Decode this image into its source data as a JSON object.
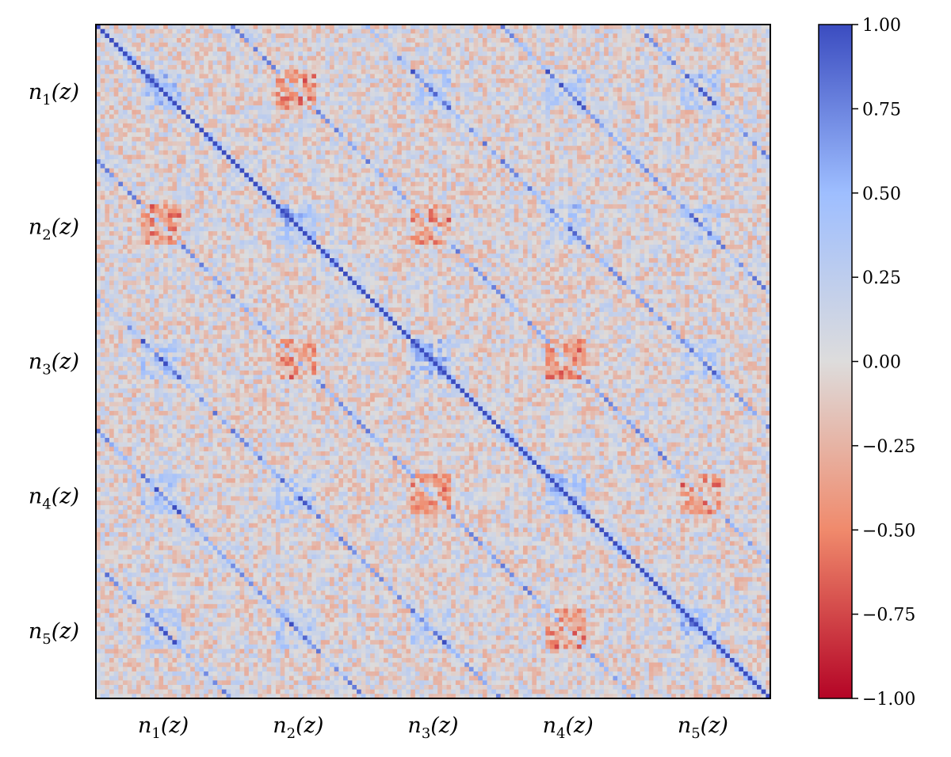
{
  "chart_data": {
    "type": "heatmap",
    "title": "",
    "description_matrix": "correlation matrix of five stacked redshift distributions n1(z)..n5(z), each block of 30 bins (150 x 150 total), diverging colormap",
    "blocks": [
      {
        "base": "n",
        "sub": "1",
        "suffix": "(z)"
      },
      {
        "base": "n",
        "sub": "2",
        "suffix": "(z)"
      },
      {
        "base": "n",
        "sub": "3",
        "suffix": "(z)"
      },
      {
        "base": "n",
        "sub": "4",
        "suffix": "(z)"
      },
      {
        "base": "n",
        "sub": "5",
        "suffix": "(z)"
      }
    ],
    "bins_per_block": 30,
    "matrix_size": 150,
    "colorbar": {
      "min": -1.0,
      "max": 1.0,
      "ticks": [
        "1.00",
        "0.75",
        "0.50",
        "0.25",
        "0.00",
        "−0.25",
        "−0.50",
        "−0.75",
        "−1.00"
      ],
      "tick_values": [
        1.0,
        0.75,
        0.5,
        0.25,
        0.0,
        -0.25,
        -0.5,
        -0.75,
        -1.0
      ],
      "colormap": "coolwarm_r",
      "color_stops": [
        {
          "v": -1.0,
          "color": "#b40426"
        },
        {
          "v": -0.5,
          "color": "#f08a6c"
        },
        {
          "v": 0.0,
          "color": "#dddcdc"
        },
        {
          "v": 0.5,
          "color": "#9ebeff"
        },
        {
          "v": 1.0,
          "color": "#3b4cc0"
        }
      ]
    },
    "features": {
      "diagonal": 1.0,
      "off_diagonal_bands": "same-bin correlation between neighbouring blocks (positive)",
      "noise_amplitude": 0.3
    },
    "grid": false,
    "legend": "colorbar right"
  }
}
